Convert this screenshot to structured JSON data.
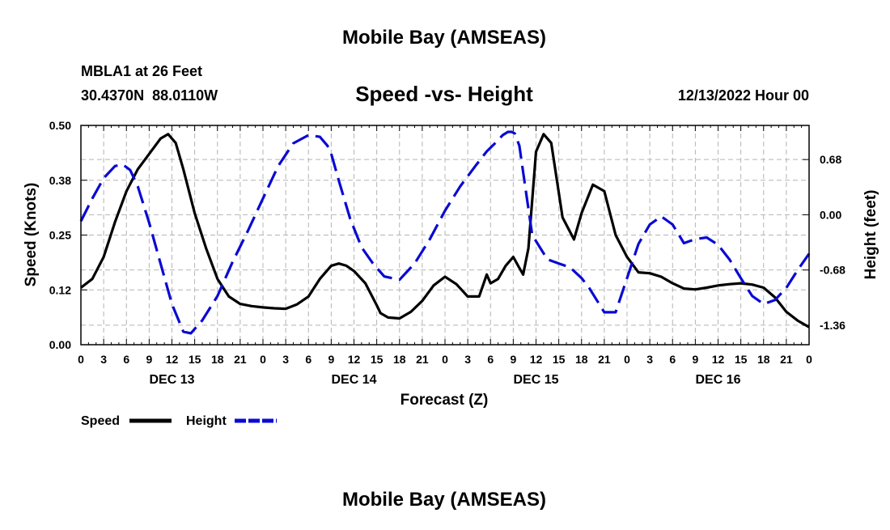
{
  "header": {
    "title": "Mobile Bay (AMSEAS)",
    "station_line1": "MBLA1 at 26 Feet",
    "station_line2": "30.4370N  88.0110W",
    "chart_subtitle": "Speed -vs- Height",
    "run_time": "12/13/2022 Hour 00",
    "footer_title": "Mobile Bay (AMSEAS)"
  },
  "legend": {
    "speed_label": "Speed",
    "height_label": "Height"
  },
  "colors": {
    "speed": "#000000",
    "height": "#0a0ad2",
    "grid": "#b4b4b4"
  },
  "chart_data": {
    "type": "line",
    "xlabel": "Forecast (Z)",
    "ylabel_left": "Speed (Knots)",
    "ylabel_right": "Height (feet)",
    "xlim_hours": [
      0,
      96
    ],
    "ylim_left": [
      0.0,
      0.5
    ],
    "ylim_right": [
      -1.6,
      1.1
    ],
    "left_ticks": [
      "0.00",
      "0.12",
      "0.25",
      "0.38",
      "0.50"
    ],
    "left_tick_values": [
      0.0,
      0.125,
      0.25,
      0.375,
      0.5
    ],
    "right_ticks": [
      "-1.36",
      "-0.68",
      "0.00",
      "0.68"
    ],
    "right_tick_values": [
      -1.36,
      -0.68,
      0.0,
      0.68
    ],
    "x_tick_labels": [
      "0",
      "3",
      "6",
      "9",
      "12",
      "15",
      "18",
      "21",
      "0",
      "3",
      "6",
      "9",
      "12",
      "15",
      "18",
      "21",
      "0",
      "3",
      "6",
      "9",
      "12",
      "15",
      "18",
      "21",
      "0",
      "3",
      "6",
      "9",
      "12",
      "15",
      "18",
      "21",
      "0"
    ],
    "day_labels": [
      {
        "label": "DEC 13",
        "hour": 12
      },
      {
        "label": "DEC 14",
        "hour": 36
      },
      {
        "label": "DEC 15",
        "hour": 60
      },
      {
        "label": "DEC 16",
        "hour": 84
      }
    ],
    "grid": true,
    "series": [
      {
        "name": "Speed",
        "axis": "left",
        "style": "solid",
        "hours": [
          0,
          1.5,
          3,
          4.5,
          6,
          7.5,
          9,
          10.5,
          11.5,
          12.5,
          13.5,
          15,
          16.5,
          18,
          19.5,
          21,
          22.5,
          24,
          25.5,
          27,
          28.5,
          30,
          31.5,
          33,
          34,
          35,
          36,
          37.5,
          39,
          39.5,
          40.5,
          42,
          43.5,
          45,
          46.5,
          48,
          49.5,
          51,
          52.5,
          53.5,
          54,
          55,
          56,
          57,
          57.8,
          58.3,
          59,
          60,
          61,
          62,
          63.5,
          65,
          66,
          67.5,
          69,
          70.5,
          72,
          73.5,
          75,
          76.5,
          78,
          79.5,
          81,
          82.5,
          84,
          85.5,
          87,
          88.5,
          90,
          91.5,
          93,
          94.5,
          96
        ],
        "values": [
          0.13,
          0.15,
          0.2,
          0.28,
          0.35,
          0.4,
          0.435,
          0.47,
          0.48,
          0.46,
          0.4,
          0.3,
          0.22,
          0.15,
          0.11,
          0.093,
          0.088,
          0.085,
          0.083,
          0.082,
          0.092,
          0.11,
          0.15,
          0.18,
          0.185,
          0.18,
          0.168,
          0.14,
          0.09,
          0.072,
          0.062,
          0.06,
          0.075,
          0.1,
          0.135,
          0.155,
          0.138,
          0.11,
          0.11,
          0.16,
          0.14,
          0.15,
          0.18,
          0.2,
          0.175,
          0.16,
          0.22,
          0.44,
          0.48,
          0.46,
          0.29,
          0.24,
          0.3,
          0.365,
          0.35,
          0.25,
          0.2,
          0.165,
          0.163,
          0.155,
          0.14,
          0.128,
          0.126,
          0.13,
          0.135,
          0.138,
          0.14,
          0.137,
          0.13,
          0.108,
          0.075,
          0.055,
          0.04
        ]
      },
      {
        "name": "Height",
        "axis": "right",
        "style": "dashed",
        "hours": [
          0,
          1.5,
          3,
          4.5,
          5.5,
          6.5,
          7.5,
          9,
          10.5,
          12,
          13.5,
          14.5,
          16,
          18,
          20,
          22,
          24,
          26,
          28,
          30,
          31.5,
          32.5,
          33,
          34,
          35.5,
          37,
          38.5,
          40,
          42,
          44,
          46,
          48,
          50,
          52,
          53.5,
          54.8,
          55.6,
          56.3,
          56.8,
          57.2,
          57.8,
          58.5,
          59.5,
          61.5,
          63,
          64.5,
          66,
          67,
          68,
          69,
          70.5,
          72,
          73.5,
          75,
          76.5,
          78,
          79.5,
          81,
          82.5,
          84,
          85.5,
          87,
          88.5,
          90,
          91.5,
          93,
          94.5,
          96
        ],
        "values": [
          -0.08,
          0.2,
          0.45,
          0.6,
          0.62,
          0.55,
          0.35,
          -0.1,
          -0.6,
          -1.1,
          -1.44,
          -1.46,
          -1.3,
          -1.0,
          -0.58,
          -0.2,
          0.2,
          0.6,
          0.88,
          0.98,
          0.96,
          0.85,
          0.75,
          0.42,
          -0.05,
          -0.4,
          -0.6,
          -0.76,
          -0.8,
          -0.6,
          -0.3,
          0.05,
          0.35,
          0.6,
          0.78,
          0.9,
          0.98,
          1.02,
          1.02,
          1.0,
          0.85,
          0.4,
          -0.25,
          -0.55,
          -0.6,
          -0.65,
          -0.78,
          -0.9,
          -1.05,
          -1.2,
          -1.2,
          -0.78,
          -0.36,
          -0.12,
          -0.02,
          -0.12,
          -0.35,
          -0.3,
          -0.28,
          -0.37,
          -0.55,
          -0.78,
          -1.0,
          -1.1,
          -1.05,
          -0.9,
          -0.68,
          -0.48
        ]
      }
    ]
  }
}
